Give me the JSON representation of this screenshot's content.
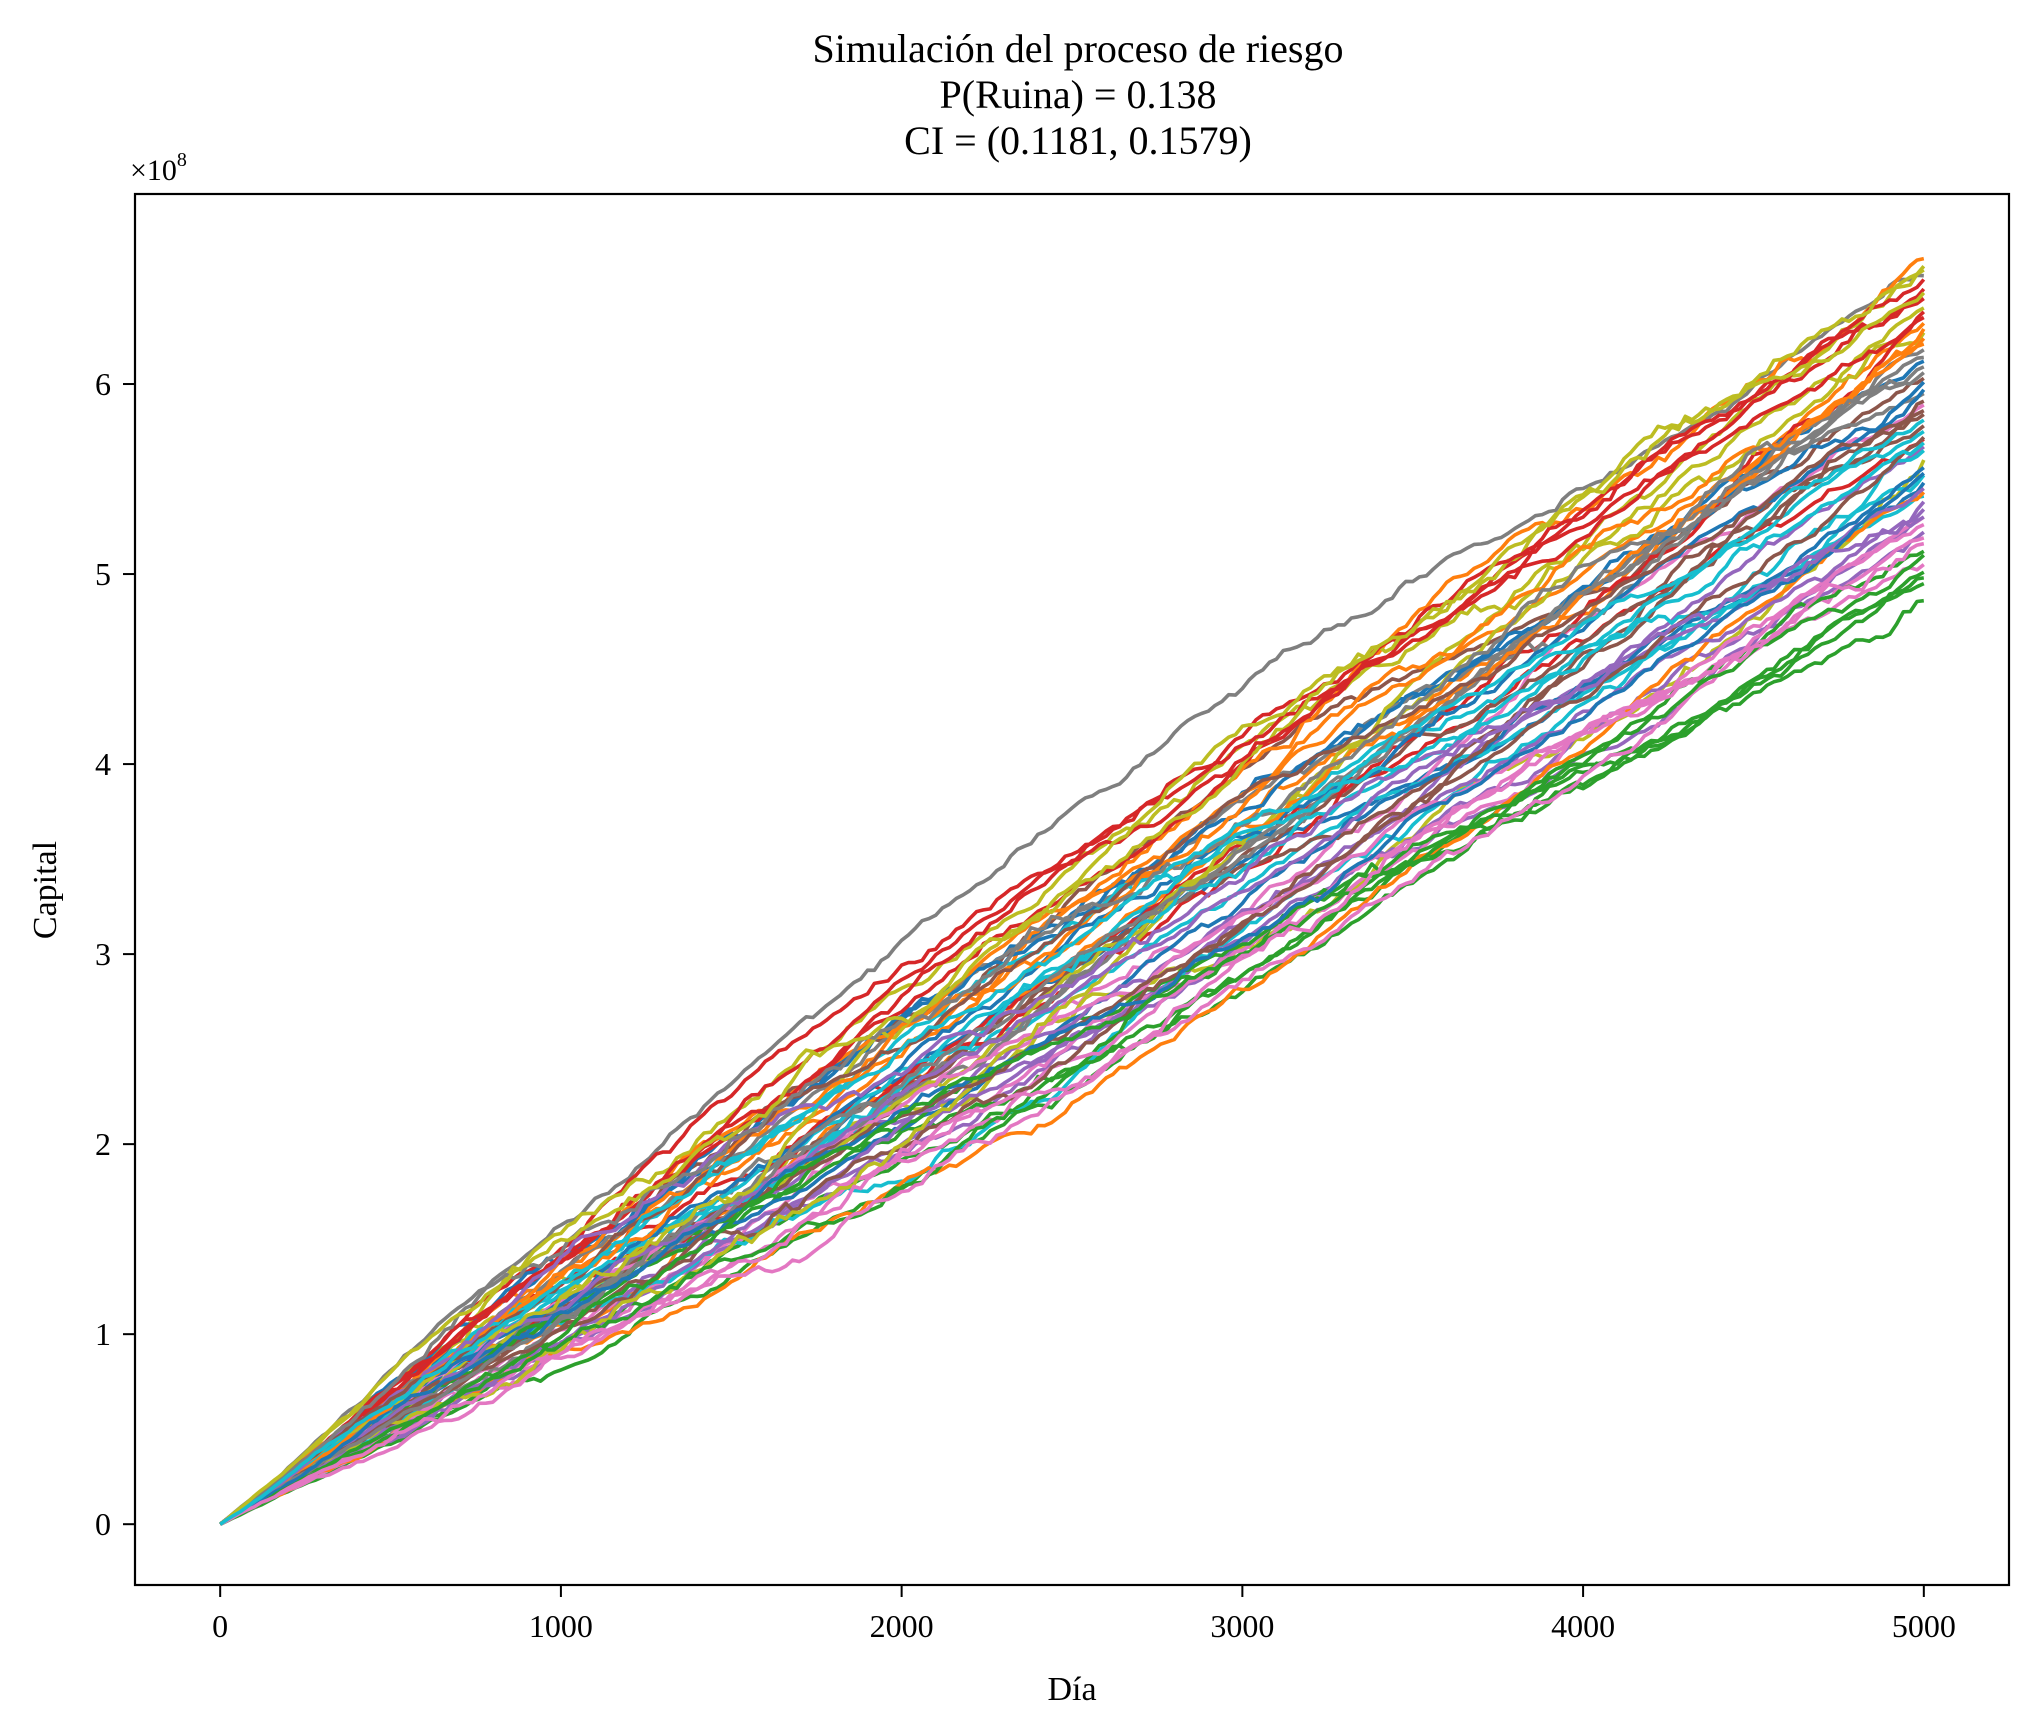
{
  "chart_data": {
    "type": "line",
    "title_lines": [
      "Simulación del proceso de riesgo",
      "P(Ruina) = 0.138",
      "CI = (0.1181, 0.1579)"
    ],
    "xlabel": "Día",
    "ylabel": "Capital",
    "xlim": [
      -250,
      5250
    ],
    "ylim": [
      -32000000,
      700000000
    ],
    "x_ticks": [
      0,
      1000,
      2000,
      3000,
      4000,
      5000
    ],
    "x_tick_labels": [
      "0",
      "1000",
      "2000",
      "3000",
      "4000",
      "5000"
    ],
    "y_ticks": [
      0,
      100000000,
      200000000,
      300000000,
      400000000,
      500000000,
      600000000
    ],
    "y_tick_labels": [
      "0",
      "1",
      "2",
      "3",
      "4",
      "5",
      "6"
    ],
    "y_offset_text": {
      "base": "×10",
      "exponent": "8"
    },
    "grid": false,
    "legend": "none",
    "n_days": 5000,
    "start_capital": 0,
    "final_capital_range": [
      485000000,
      666000000
    ],
    "series_colors": [
      "#1f77b4",
      "#ff7f0e",
      "#2ca02c",
      "#d62728",
      "#9467bd",
      "#8c564b",
      "#e377c2",
      "#7f7f7f",
      "#bcbd22",
      "#17becf"
    ],
    "series_final_values": [
      548000000,
      632000000,
      498000000,
      571000000,
      522000000,
      603000000,
      589000000,
      657000000,
      560000000,
      541000000,
      612000000,
      666000000,
      495000000,
      645000000,
      534000000,
      578000000,
      519000000,
      595000000,
      627000000,
      552000000,
      601000000,
      543000000,
      486000000,
      638000000,
      567000000,
      584000000,
      530000000,
      618000000,
      662000000,
      575000000,
      556000000,
      624000000,
      512000000,
      650000000,
      538000000,
      591000000,
      505000000,
      609000000,
      640000000,
      565000000,
      597000000,
      629000000,
      501000000,
      655000000,
      545000000,
      572000000,
      526000000,
      614000000,
      660000000,
      581000000,
      553000000,
      621000000,
      510000000,
      635000000,
      530000000,
      586000000,
      516000000,
      606000000,
      648000000,
      569000000
    ]
  }
}
